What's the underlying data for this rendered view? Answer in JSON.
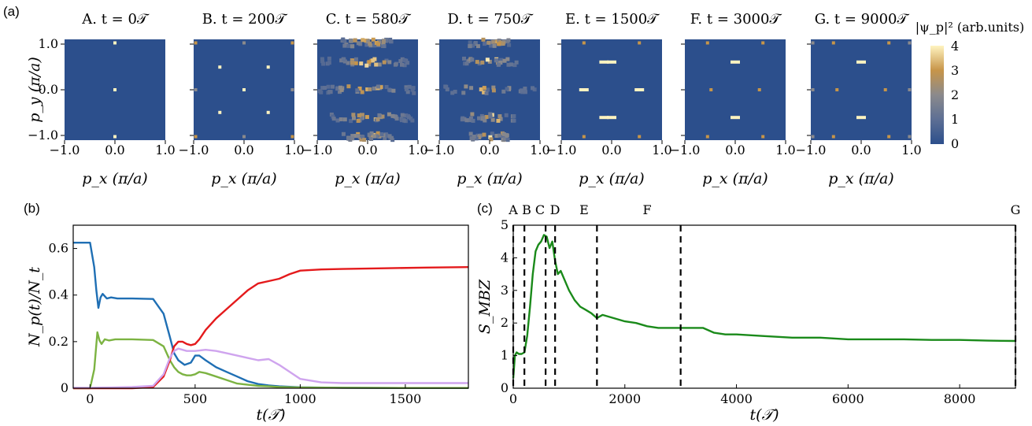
{
  "panel_labels": {
    "a": "(a)",
    "b": "(b)",
    "c": "(c)"
  },
  "snapshots": {
    "titles": [
      "A. t = 0𝒯",
      "B. t = 200𝒯",
      "C. t = 580𝒯",
      "D. t = 750𝒯",
      "E. t = 1500𝒯",
      "F. t = 3000𝒯",
      "G. t = 9000𝒯"
    ],
    "xlabel": "p_x (π/a)",
    "ylabel": "p_y (π/a)",
    "x_ticks": [
      "−1.0",
      "0.0",
      "1.0"
    ],
    "y_ticks": [
      "1.0",
      "0.0",
      "−1.0"
    ],
    "colorbar_title": "|ψ_p|² (arb.units)",
    "colorbar_ticks": [
      "4",
      "3",
      "2",
      "1",
      "0"
    ],
    "colormap": [
      "#2c4f8c",
      "#5d6f94",
      "#8b8a8c",
      "#c79549",
      "#fff3c0"
    ]
  },
  "chart_data": [
    {
      "type": "heatmap",
      "panel": "a",
      "titles": [
        "A. t = 0𝒯",
        "B. t = 200𝒯",
        "C. t = 580𝒯",
        "D. t = 750𝒯",
        "E. t = 1500𝒯",
        "F. t = 3000𝒯",
        "G. t = 9000𝒯"
      ],
      "xlabel": "p_x (π/a)",
      "ylabel": "p_y (π/a)",
      "xlim": [
        -1,
        1
      ],
      "ylim": [
        -1,
        1
      ],
      "colorbar_range": [
        0,
        4
      ]
    },
    {
      "type": "line",
      "panel": "b",
      "xlabel": "t(𝒯)",
      "ylabel": "N_p(t)/N_t",
      "xlim": [
        -80,
        1800
      ],
      "ylim": [
        0,
        0.7
      ],
      "x_ticks": [
        0,
        500,
        1000,
        1500
      ],
      "y_ticks": [
        0,
        0.2,
        0.4,
        0.6
      ],
      "series": [
        {
          "color": "#1f6fb4",
          "x": [
            -80,
            0,
            20,
            30,
            40,
            50,
            60,
            80,
            100,
            130,
            200,
            300,
            350,
            380,
            400,
            420,
            450,
            480,
            500,
            520,
            550,
            600,
            650,
            700,
            750,
            800,
            850,
            900,
            1000,
            1200,
            1500,
            1800
          ],
          "y": [
            0.625,
            0.625,
            0.52,
            0.42,
            0.345,
            0.39,
            0.405,
            0.385,
            0.39,
            0.385,
            0.385,
            0.383,
            0.32,
            0.22,
            0.15,
            0.12,
            0.1,
            0.11,
            0.14,
            0.14,
            0.12,
            0.09,
            0.07,
            0.05,
            0.03,
            0.018,
            0.012,
            0.008,
            0.004,
            0.002,
            0.001,
            0.001
          ]
        },
        {
          "color": "#7cb342",
          "x": [
            -80,
            0,
            20,
            35,
            45,
            55,
            70,
            90,
            120,
            200,
            300,
            350,
            380,
            400,
            420,
            440,
            460,
            480,
            500,
            520,
            550,
            600,
            650,
            700,
            750,
            800,
            850,
            900,
            1000,
            1200,
            1500,
            1800
          ],
          "y": [
            0,
            0,
            0.08,
            0.24,
            0.205,
            0.19,
            0.21,
            0.205,
            0.21,
            0.21,
            0.207,
            0.18,
            0.12,
            0.09,
            0.07,
            0.06,
            0.055,
            0.055,
            0.06,
            0.07,
            0.065,
            0.05,
            0.035,
            0.02,
            0.015,
            0.01,
            0.008,
            0.005,
            0.003,
            0.002,
            0.001,
            0.001
          ]
        },
        {
          "color": "#e41a1c",
          "x": [
            -80,
            0,
            100,
            200,
            300,
            350,
            380,
            400,
            420,
            440,
            460,
            480,
            500,
            520,
            550,
            600,
            650,
            700,
            750,
            800,
            850,
            900,
            950,
            1000,
            1100,
            1200,
            1400,
            1600,
            1800
          ],
          "y": [
            0,
            0,
            0,
            0,
            0.005,
            0.05,
            0.12,
            0.18,
            0.2,
            0.2,
            0.19,
            0.185,
            0.19,
            0.21,
            0.25,
            0.3,
            0.34,
            0.38,
            0.42,
            0.45,
            0.46,
            0.47,
            0.49,
            0.505,
            0.51,
            0.512,
            0.515,
            0.518,
            0.52
          ]
        },
        {
          "color": "#cfa4ee",
          "x": [
            -80,
            0,
            100,
            200,
            300,
            350,
            380,
            400,
            420,
            440,
            460,
            500,
            550,
            600,
            650,
            700,
            750,
            800,
            850,
            900,
            950,
            1000,
            1100,
            1200,
            1500,
            1800
          ],
          "y": [
            0.002,
            0.002,
            0.003,
            0.005,
            0.01,
            0.06,
            0.13,
            0.16,
            0.17,
            0.165,
            0.16,
            0.16,
            0.165,
            0.16,
            0.15,
            0.14,
            0.13,
            0.12,
            0.125,
            0.1,
            0.07,
            0.04,
            0.025,
            0.022,
            0.022,
            0.022
          ]
        }
      ]
    },
    {
      "type": "line",
      "panel": "c",
      "xlabel": "t(𝒯)",
      "ylabel": "S_MBZ",
      "xlim": [
        0,
        9000
      ],
      "ylim": [
        0,
        5
      ],
      "x_ticks": [
        0,
        2000,
        4000,
        6000,
        8000
      ],
      "y_ticks": [
        0,
        1,
        2,
        3,
        4,
        5
      ],
      "event_labels": [
        "A",
        "B",
        "C",
        "D",
        "E",
        "F",
        "G"
      ],
      "event_times": [
        0,
        200,
        580,
        750,
        1500,
        3000,
        9000
      ],
      "series": [
        {
          "color": "#1a8a1a",
          "x": [
            0,
            30,
            60,
            100,
            150,
            200,
            250,
            300,
            350,
            400,
            450,
            500,
            550,
            600,
            650,
            700,
            750,
            800,
            850,
            900,
            1000,
            1100,
            1200,
            1300,
            1400,
            1500,
            1600,
            1800,
            2000,
            2200,
            2400,
            2600,
            2800,
            3000,
            3200,
            3400,
            3600,
            3800,
            4000,
            4500,
            5000,
            5500,
            6000,
            6500,
            7000,
            7500,
            8000,
            8500,
            9000
          ],
          "y": [
            0.3,
            1.0,
            1.1,
            1.05,
            1.05,
            1.1,
            1.6,
            2.5,
            3.5,
            4.2,
            4.4,
            4.5,
            4.7,
            4.65,
            4.3,
            4.5,
            3.9,
            3.5,
            3.6,
            3.4,
            3.0,
            2.7,
            2.5,
            2.4,
            2.3,
            2.15,
            2.25,
            2.15,
            2.05,
            2.0,
            1.9,
            1.85,
            1.85,
            1.85,
            1.85,
            1.85,
            1.7,
            1.65,
            1.65,
            1.6,
            1.55,
            1.55,
            1.5,
            1.5,
            1.5,
            1.48,
            1.48,
            1.46,
            1.45
          ]
        }
      ]
    }
  ]
}
